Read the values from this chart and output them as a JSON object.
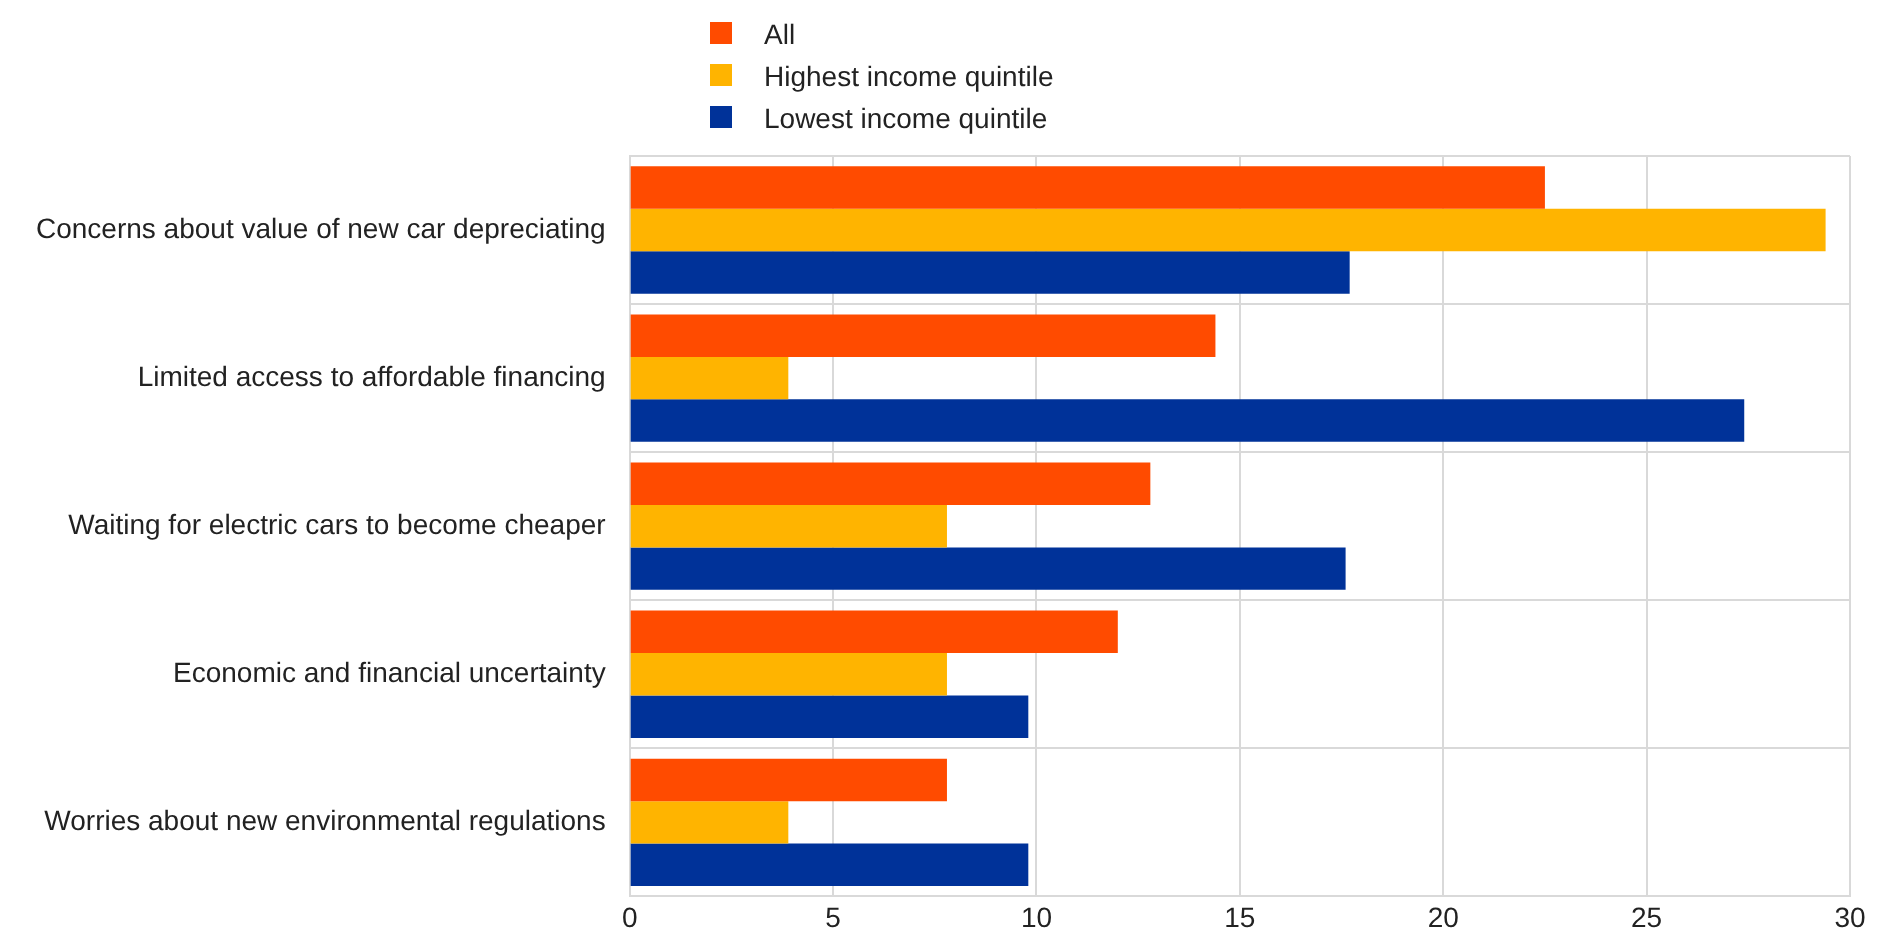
{
  "chart_data": {
    "type": "bar",
    "orientation": "horizontal",
    "categories": [
      "Concerns about value of new car depreciating",
      "Limited access to affordable financing",
      "Waiting for electric cars to become cheaper",
      "Economic and financial uncertainty",
      "Worries about new environmental regulations"
    ],
    "series": [
      {
        "name": "All",
        "color": "#ff4b00",
        "values": [
          22.5,
          14.4,
          12.8,
          12.0,
          7.8
        ]
      },
      {
        "name": "Highest income quintile",
        "color": "#ffb400",
        "values": [
          29.4,
          3.9,
          7.8,
          7.8,
          3.9
        ]
      },
      {
        "name": "Lowest income quintile",
        "color": "#003299",
        "values": [
          17.7,
          27.4,
          17.6,
          9.8,
          9.8
        ]
      }
    ],
    "xlim": [
      0,
      30
    ],
    "xticks": [
      0,
      5,
      10,
      15,
      20,
      25,
      30
    ],
    "grid": true,
    "legend": "top"
  }
}
